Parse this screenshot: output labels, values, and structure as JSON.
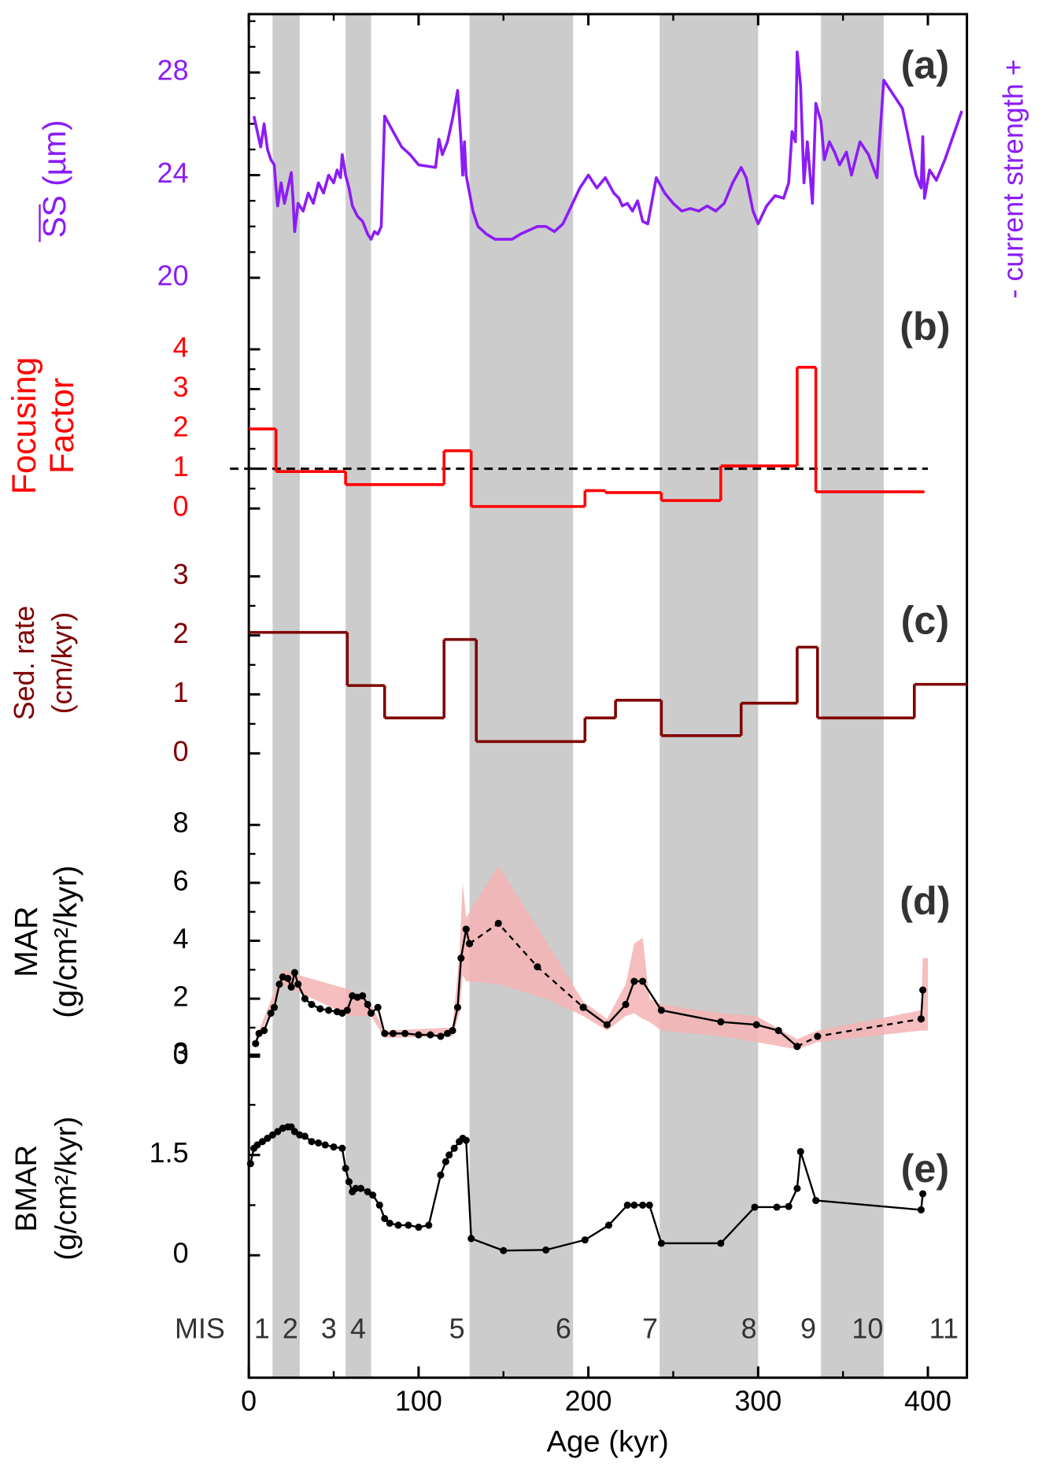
{
  "x_axis": {
    "label": "Age (kyr)",
    "xlim": [
      0,
      423
    ],
    "xticks": [
      0,
      100,
      200,
      300,
      400
    ],
    "xminor": [
      50,
      150,
      250,
      350
    ]
  },
  "shading": {
    "color": "#cccccc",
    "bands": [
      [
        14,
        30
      ],
      [
        57,
        72
      ],
      [
        130,
        191
      ],
      [
        242,
        300
      ],
      [
        337,
        374
      ]
    ]
  },
  "mis": {
    "label": "MIS",
    "stages": [
      "1",
      "2",
      "3",
      "4",
      "5",
      "6",
      "7",
      "8",
      "9",
      "10",
      "11"
    ]
  },
  "chart_data": [
    {
      "type": "line",
      "panel_label": "(a)",
      "ylabel": [
        "SS (µm)"
      ],
      "right_label": "- current strength +",
      "color": "#8c1cf5",
      "ylim": [
        19.1,
        30.3
      ],
      "yticks": [
        20,
        24,
        28
      ],
      "yminor": [
        21,
        22,
        23,
        25,
        26,
        27,
        29,
        30
      ],
      "markers": false,
      "pieces": [
        {
          "dashed": false,
          "x": [
            3,
            5,
            7,
            9,
            11,
            13,
            15,
            16,
            17,
            19,
            21,
            23,
            25,
            26,
            27,
            29,
            32,
            35,
            38,
            41,
            44,
            47,
            50,
            52,
            54,
            55,
            57,
            59,
            61,
            64,
            67,
            70,
            72,
            74,
            76,
            78,
            80,
            85,
            90,
            95,
            100,
            110,
            112,
            114,
            117,
            120,
            123,
            125,
            126,
            127,
            128,
            130,
            132,
            135,
            140,
            145,
            150,
            155,
            160,
            170,
            175,
            180,
            185,
            190,
            195,
            200,
            205,
            210,
            215,
            218,
            220,
            223,
            226,
            229,
            232,
            235,
            240,
            245,
            250,
            255,
            260,
            265,
            270,
            275,
            280,
            285,
            290,
            293,
            297,
            300,
            305,
            310,
            315,
            318,
            320,
            322,
            323,
            325,
            327,
            329,
            332,
            334,
            337,
            339,
            342,
            345,
            348,
            352,
            355,
            360,
            365,
            370,
            374,
            385,
            393,
            396,
            397,
            398,
            401,
            405,
            410,
            420
          ],
          "values": [
            26.3,
            25.7,
            25.1,
            26.0,
            25.0,
            24.6,
            24.4,
            23.5,
            22.8,
            23.7,
            22.9,
            23.5,
            24.1,
            23.1,
            21.8,
            22.9,
            22.6,
            23.3,
            22.9,
            23.7,
            23.3,
            24.0,
            23.7,
            24.2,
            23.9,
            24.8,
            24.0,
            23.5,
            22.8,
            22.4,
            22.2,
            21.7,
            21.5,
            21.8,
            21.7,
            22.0,
            26.3,
            25.7,
            25.1,
            24.8,
            24.4,
            24.3,
            25.4,
            24.8,
            25.3,
            26.2,
            27.3,
            25.3,
            24.0,
            25.3,
            24.0,
            23.3,
            22.6,
            22.0,
            21.7,
            21.5,
            21.5,
            21.5,
            21.7,
            22.0,
            22.0,
            21.8,
            22.1,
            22.8,
            23.5,
            24.0,
            23.5,
            23.9,
            23.3,
            23.1,
            22.8,
            22.9,
            22.6,
            23.0,
            22.2,
            22.1,
            23.9,
            23.3,
            22.9,
            22.6,
            22.7,
            22.6,
            22.8,
            22.6,
            22.9,
            23.7,
            24.3,
            23.9,
            22.6,
            22.1,
            22.8,
            23.2,
            23.1,
            23.7,
            25.7,
            25.3,
            28.8,
            27.5,
            23.7,
            25.3,
            22.9,
            26.8,
            26.1,
            24.6,
            25.3,
            24.9,
            24.4,
            24.9,
            24.0,
            25.3,
            24.8,
            23.9,
            27.7,
            26.6,
            24.0,
            23.5,
            25.5,
            23.1,
            24.2,
            23.8,
            24.6,
            26.5
          ]
        }
      ]
    },
    {
      "type": "step",
      "panel_label": "(b)",
      "ylabel": [
        "Focusing",
        "Factor"
      ],
      "color": "#ff0000",
      "ylim": [
        -0.5,
        4.6
      ],
      "yticks": [
        0,
        1,
        2,
        3,
        4
      ],
      "yminor": [
        0.5,
        1.5,
        2.5,
        3.5
      ],
      "refline": 1,
      "edges": [
        0,
        16,
        57,
        115,
        131,
        198,
        210,
        243,
        278,
        323,
        334,
        398
      ],
      "values": [
        2.0,
        0.93,
        0.6,
        1.45,
        0.05,
        0.45,
        0.4,
        0.2,
        1.07,
        3.55,
        0.42
      ]
    },
    {
      "type": "step",
      "panel_label": "(c)",
      "ylabel": [
        "Sed. rate",
        "(cm/kyr)"
      ],
      "color": "#800000",
      "ylim": [
        -0.3,
        3.5
      ],
      "yticks": [
        0,
        1,
        2,
        3
      ],
      "yminor": [
        0.5,
        1.5,
        2.5
      ],
      "edges": [
        0,
        58,
        80,
        115,
        134,
        198,
        216,
        243,
        290,
        323,
        335,
        392,
        423
      ],
      "values": [
        2.05,
        1.15,
        0.6,
        1.93,
        0.2,
        0.6,
        0.9,
        0.3,
        0.85,
        1.8,
        0.6,
        1.17
      ]
    },
    {
      "type": "line",
      "panel_label": "(d)",
      "ylabel": [
        "MAR",
        "(g/cm²/kyr)"
      ],
      "color": "#000000",
      "ylim": [
        -0.5,
        8.5
      ],
      "yticks": [
        0,
        2,
        4,
        6,
        8
      ],
      "yminor": [
        1,
        3,
        5,
        7
      ],
      "markers": true,
      "band": {
        "color": "#f5b3b3",
        "x": [
          4,
          20,
          30,
          60,
          72,
          80,
          120,
          124,
          126,
          128,
          147,
          175,
          197,
          211,
          222,
          227,
          232,
          236,
          243,
          278,
          299,
          323,
          335,
          396,
          397,
          400
        ],
        "upper": [
          0.6,
          3.0,
          2.8,
          2.3,
          1.8,
          0.9,
          1.0,
          3.5,
          6.0,
          4.8,
          6.6,
          4.0,
          1.9,
          1.3,
          2.5,
          3.9,
          4.1,
          2.0,
          1.8,
          1.5,
          1.4,
          0.6,
          0.9,
          1.6,
          3.4,
          3.4
        ],
        "lower": [
          0.4,
          2.5,
          2.2,
          1.4,
          1.4,
          0.65,
          0.7,
          1.5,
          2.8,
          2.6,
          2.5,
          2.0,
          1.4,
          0.9,
          1.4,
          1.5,
          1.3,
          1.2,
          0.9,
          0.7,
          0.5,
          0.25,
          0.5,
          0.9,
          0.9,
          0.9
        ]
      },
      "pieces": [
        {
          "dashed": false,
          "x": [
            4,
            6,
            9,
            13,
            15,
            18,
            20,
            23,
            25,
            27,
            29,
            33,
            37,
            42,
            47,
            52,
            55,
            58,
            61,
            64,
            67,
            70,
            72,
            76,
            80,
            85,
            92,
            100,
            107,
            113,
            117,
            120,
            123,
            125,
            128,
            130
          ],
          "values": [
            0.45,
            0.8,
            0.9,
            1.5,
            1.7,
            2.5,
            2.75,
            2.7,
            2.4,
            2.9,
            2.5,
            2.0,
            1.8,
            1.65,
            1.6,
            1.55,
            1.5,
            1.6,
            2.1,
            2.05,
            2.1,
            1.8,
            1.5,
            1.7,
            0.8,
            0.8,
            0.8,
            0.75,
            0.75,
            0.7,
            0.8,
            0.9,
            1.7,
            3.4,
            4.4,
            3.9
          ]
        },
        {
          "dashed": true,
          "x": [
            130,
            147,
            170,
            197
          ],
          "values": [
            3.9,
            4.6,
            3.1,
            1.7
          ]
        },
        {
          "dashed": false,
          "x": [
            197,
            211,
            222,
            227,
            232,
            243,
            278,
            299,
            312,
            323
          ],
          "values": [
            1.7,
            1.1,
            1.8,
            2.6,
            2.6,
            1.6,
            1.2,
            1.1,
            0.9,
            0.35
          ]
        },
        {
          "dashed": true,
          "x": [
            323,
            335,
            396
          ],
          "values": [
            0.35,
            0.7,
            1.3
          ]
        },
        {
          "dashed": false,
          "x": [
            396,
            397
          ],
          "values": [
            1.3,
            2.3
          ]
        }
      ]
    },
    {
      "type": "line",
      "panel_label": "(e)",
      "ylabel": [
        "BMAR",
        "(g/cm²/kyr)"
      ],
      "color": "#000000",
      "ylim": [
        -0.3,
        3.4
      ],
      "yticks": [
        0,
        1.5,
        3
      ],
      "yminor": [
        0.75,
        2.25
      ],
      "markers": true,
      "pieces": [
        {
          "dashed": false,
          "x": [
            1,
            3,
            5,
            8,
            11,
            14,
            17,
            20,
            23,
            25,
            27,
            30,
            33,
            37,
            41,
            45,
            50,
            55,
            57,
            59,
            61,
            63,
            66,
            70,
            73,
            77,
            80,
            83,
            88,
            94,
            100,
            106,
            113,
            116,
            118,
            121,
            124,
            126,
            128,
            131,
            150,
            175,
            198,
            212,
            223,
            227,
            232,
            236,
            243,
            278,
            298,
            311,
            318,
            323,
            325,
            334,
            396,
            397
          ],
          "values": [
            1.37,
            1.6,
            1.65,
            1.7,
            1.75,
            1.8,
            1.85,
            1.9,
            1.92,
            1.92,
            1.85,
            1.8,
            1.78,
            1.7,
            1.68,
            1.65,
            1.62,
            1.6,
            1.3,
            1.1,
            0.95,
            1.0,
            1.0,
            0.95,
            0.9,
            0.75,
            0.55,
            0.48,
            0.45,
            0.45,
            0.42,
            0.45,
            1.2,
            1.4,
            1.5,
            1.6,
            1.7,
            1.75,
            1.72,
            0.25,
            0.07,
            0.08,
            0.23,
            0.45,
            0.75,
            0.75,
            0.75,
            0.75,
            0.18,
            0.18,
            0.72,
            0.72,
            0.73,
            1.0,
            1.55,
            0.82,
            0.68,
            0.92
          ]
        }
      ]
    }
  ]
}
